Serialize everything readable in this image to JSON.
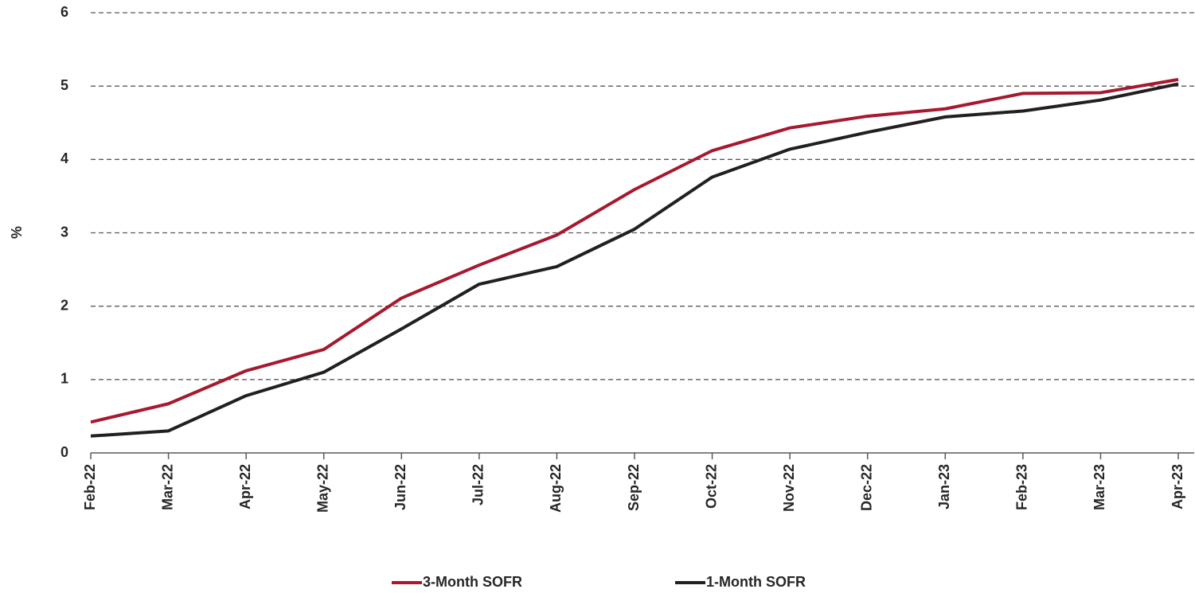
{
  "chart_data": {
    "type": "line",
    "y_label": "%",
    "categories": [
      "Feb-22",
      "Mar-22",
      "Apr-22",
      "May-22",
      "Jun-22",
      "Jul-22",
      "Aug-22",
      "Sep-22",
      "Oct-22",
      "Nov-22",
      "Dec-22",
      "Jan-23",
      "Feb-23",
      "Mar-23",
      "Apr-23"
    ],
    "series": [
      {
        "name": "3-Month SOFR",
        "color": "#a6192e",
        "values": [
          0.42,
          0.67,
          1.12,
          1.41,
          2.11,
          2.56,
          2.97,
          3.59,
          4.12,
          4.43,
          4.59,
          4.69,
          4.9,
          4.91,
          5.09
        ]
      },
      {
        "name": "1-Month SOFR",
        "color": "#231f20",
        "values": [
          0.23,
          0.3,
          0.78,
          1.1,
          1.69,
          2.3,
          2.54,
          3.05,
          3.76,
          4.14,
          4.37,
          4.58,
          4.66,
          4.81,
          5.03
        ]
      }
    ],
    "ylim": [
      0,
      6
    ],
    "yticks": [
      0,
      1,
      2,
      3,
      4,
      5,
      6
    ],
    "grid": true,
    "legend": "bottom"
  }
}
